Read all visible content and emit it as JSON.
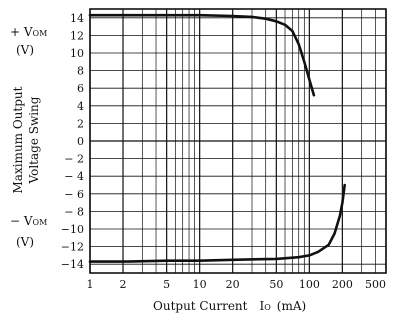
{
  "chart_data": {
    "type": "line",
    "xscale": "log",
    "xlim": [
      1,
      500
    ],
    "ylim": [
      -15,
      15
    ],
    "grid": true,
    "xticks": [
      1,
      2,
      5,
      10,
      20,
      50,
      100,
      200,
      500
    ],
    "xtick_labels": [
      "1",
      "2",
      "5",
      "10",
      "20",
      "50",
      "100",
      "200",
      "500"
    ],
    "yticks": [
      14,
      12,
      10,
      8,
      6,
      4,
      2,
      0,
      -2,
      -4,
      -6,
      -8,
      -10,
      -12,
      -14
    ],
    "ytick_labels": [
      "14",
      "12",
      "10",
      "8",
      "6",
      "4",
      "2",
      "0",
      "− 2",
      "− 4",
      "− 6",
      "− 8",
      "−10",
      "−12",
      "−14"
    ],
    "xlabel": "Output Current",
    "xlabel_symbol": "I",
    "xlabel_symbol_sub": "O",
    "xlabel_unit": "(mA)",
    "ylabel_line1": "Maximum Output",
    "ylabel_line2": "Voltage Swing",
    "pos_label_prefix": "+ V",
    "pos_label_sub": "OM",
    "pos_label_unit": "(V)",
    "neg_label_prefix": "− V",
    "neg_label_sub": "OM",
    "neg_label_unit": "(V)",
    "series": [
      {
        "color": "#111111",
        "x": [
          1,
          2,
          5,
          10,
          20,
          30,
          40,
          50,
          60,
          70,
          80,
          90,
          100,
          110
        ],
        "y": [
          14.3,
          14.3,
          14.3,
          14.3,
          14.2,
          14.1,
          13.9,
          13.6,
          13.2,
          12.5,
          11.0,
          9.0,
          7.0,
          5.2
        ]
      },
      {
        "color": "#111111",
        "x": [
          1,
          2,
          5,
          10,
          20,
          50,
          80,
          100,
          120,
          150,
          170,
          190,
          200,
          210
        ],
        "y": [
          -13.7,
          -13.7,
          -13.6,
          -13.6,
          -13.5,
          -13.4,
          -13.2,
          -13.0,
          -12.6,
          -11.8,
          -10.5,
          -8.5,
          -7.0,
          -5.0
        ]
      }
    ]
  }
}
